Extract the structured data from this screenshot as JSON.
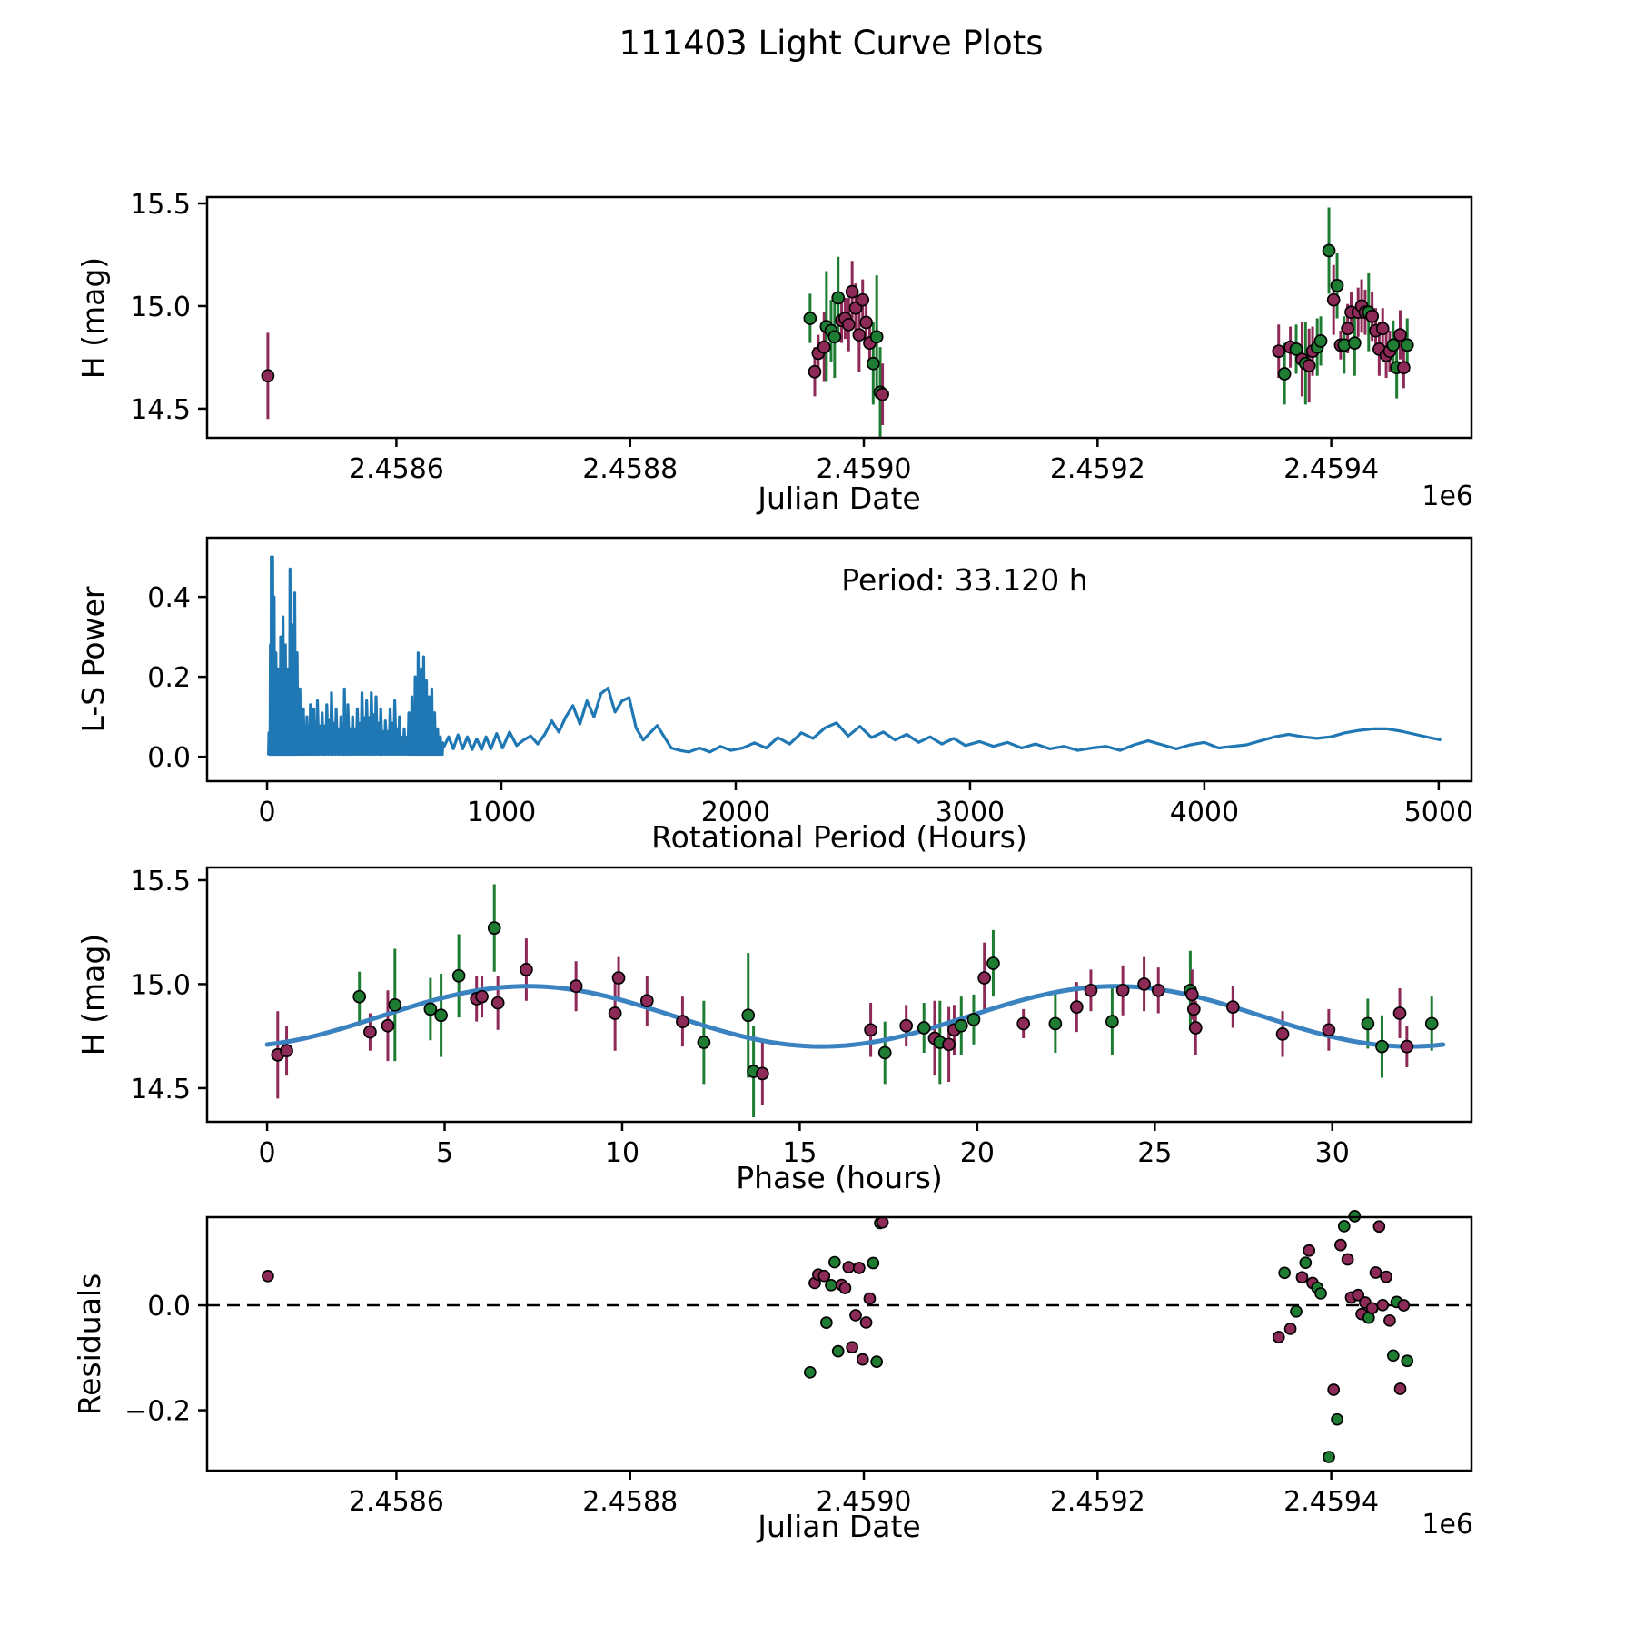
{
  "title": "111403 Light Curve Plots",
  "marker_colors": {
    "m": "#8e2a57",
    "g": "#1e7d32"
  },
  "axis_color": "#000000",
  "chart_data": [
    {
      "id": "lightcurve_vs_jd",
      "type": "scatter",
      "xlabel": "Julian Date",
      "ylabel": "H (mag)",
      "x_offset_label": "1e6",
      "xlim": [
        2.458438,
        2.45952
      ],
      "ylim": [
        14.358,
        15.531
      ],
      "xticks": [
        2.4586,
        2.4588,
        2.459,
        2.4592,
        2.4594
      ],
      "xtick_labels": [
        "2.4586",
        "2.4588",
        "2.4590",
        "2.4592",
        "2.4594"
      ],
      "yticks": [
        14.5,
        15.0,
        15.5
      ],
      "ytick_labels": [
        "14.5",
        "15.0",
        "15.5"
      ],
      "points_source": "observations: x = jd (Julian Date / 1e6), y = h, yerr = err, color = c"
    },
    {
      "id": "ls_periodogram",
      "type": "line",
      "xlabel": "Rotational Period (Hours)",
      "ylabel": "L-S Power",
      "annotation": "Period: 33.120 h",
      "line_color": "#1f77b4",
      "xlim": [
        -256,
        5140
      ],
      "ylim": [
        -0.061,
        0.548
      ],
      "xticks": [
        0,
        1000,
        2000,
        3000,
        4000,
        5000
      ],
      "xtick_labels": [
        "0",
        "1000",
        "2000",
        "3000",
        "4000",
        "5000"
      ],
      "yticks": [
        0.0,
        0.2,
        0.4
      ],
      "ytick_labels": [
        "0.0",
        "0.2",
        "0.4"
      ],
      "spike_envelope": [
        [
          8,
          0.06
        ],
        [
          14,
          0.28
        ],
        [
          18,
          0.5
        ],
        [
          24,
          0.5
        ],
        [
          30,
          0.4
        ],
        [
          38,
          0.26
        ],
        [
          48,
          0.22
        ],
        [
          58,
          0.3
        ],
        [
          68,
          0.35
        ],
        [
          78,
          0.28
        ],
        [
          88,
          0.22
        ],
        [
          98,
          0.47
        ],
        [
          108,
          0.33
        ],
        [
          118,
          0.41
        ],
        [
          128,
          0.26
        ],
        [
          140,
          0.17
        ],
        [
          155,
          0.12
        ],
        [
          170,
          0.1
        ],
        [
          185,
          0.13
        ],
        [
          200,
          0.12
        ],
        [
          215,
          0.14
        ],
        [
          235,
          0.11
        ],
        [
          255,
          0.13
        ],
        [
          275,
          0.16
        ],
        [
          295,
          0.12
        ],
        [
          315,
          0.1
        ],
        [
          330,
          0.17
        ],
        [
          345,
          0.13
        ],
        [
          365,
          0.1
        ],
        [
          385,
          0.12
        ],
        [
          405,
          0.16
        ],
        [
          425,
          0.14
        ],
        [
          445,
          0.16
        ],
        [
          465,
          0.15
        ],
        [
          485,
          0.12
        ],
        [
          505,
          0.09
        ],
        [
          525,
          0.12
        ],
        [
          545,
          0.14
        ],
        [
          565,
          0.1
        ],
        [
          585,
          0.07
        ],
        [
          605,
          0.11
        ],
        [
          618,
          0.15
        ],
        [
          632,
          0.2
        ],
        [
          645,
          0.26
        ],
        [
          658,
          0.22
        ],
        [
          668,
          0.25
        ],
        [
          680,
          0.19
        ],
        [
          692,
          0.15
        ],
        [
          703,
          0.17
        ],
        [
          715,
          0.11
        ],
        [
          728,
          0.07
        ],
        [
          740,
          0.05
        ],
        [
          750,
          0.035
        ]
      ],
      "smooth_points": [
        [
          755,
          0.025
        ],
        [
          775,
          0.05
        ],
        [
          795,
          0.02
        ],
        [
          815,
          0.055
        ],
        [
          835,
          0.02
        ],
        [
          855,
          0.05
        ],
        [
          875,
          0.018
        ],
        [
          895,
          0.045
        ],
        [
          915,
          0.018
        ],
        [
          935,
          0.05
        ],
        [
          955,
          0.02
        ],
        [
          980,
          0.058
        ],
        [
          1005,
          0.022
        ],
        [
          1035,
          0.062
        ],
        [
          1065,
          0.028
        ],
        [
          1095,
          0.042
        ],
        [
          1125,
          0.052
        ],
        [
          1155,
          0.032
        ],
        [
          1185,
          0.056
        ],
        [
          1215,
          0.09
        ],
        [
          1245,
          0.062
        ],
        [
          1275,
          0.1
        ],
        [
          1305,
          0.128
        ],
        [
          1335,
          0.082
        ],
        [
          1365,
          0.14
        ],
        [
          1395,
          0.1
        ],
        [
          1425,
          0.158
        ],
        [
          1455,
          0.172
        ],
        [
          1485,
          0.112
        ],
        [
          1515,
          0.14
        ],
        [
          1545,
          0.148
        ],
        [
          1575,
          0.072
        ],
        [
          1605,
          0.042
        ],
        [
          1635,
          0.06
        ],
        [
          1665,
          0.078
        ],
        [
          1695,
          0.05
        ],
        [
          1725,
          0.022
        ],
        [
          1760,
          0.016
        ],
        [
          1800,
          0.012
        ],
        [
          1845,
          0.022
        ],
        [
          1890,
          0.012
        ],
        [
          1935,
          0.026
        ],
        [
          1980,
          0.016
        ],
        [
          2030,
          0.022
        ],
        [
          2080,
          0.035
        ],
        [
          2130,
          0.022
        ],
        [
          2180,
          0.048
        ],
        [
          2230,
          0.032
        ],
        [
          2280,
          0.06
        ],
        [
          2330,
          0.046
        ],
        [
          2380,
          0.072
        ],
        [
          2430,
          0.085
        ],
        [
          2480,
          0.052
        ],
        [
          2530,
          0.076
        ],
        [
          2580,
          0.048
        ],
        [
          2630,
          0.062
        ],
        [
          2680,
          0.042
        ],
        [
          2730,
          0.056
        ],
        [
          2780,
          0.036
        ],
        [
          2830,
          0.05
        ],
        [
          2880,
          0.032
        ],
        [
          2930,
          0.046
        ],
        [
          2980,
          0.028
        ],
        [
          3040,
          0.038
        ],
        [
          3100,
          0.026
        ],
        [
          3160,
          0.036
        ],
        [
          3220,
          0.022
        ],
        [
          3280,
          0.032
        ],
        [
          3340,
          0.02
        ],
        [
          3400,
          0.026
        ],
        [
          3460,
          0.016
        ],
        [
          3520,
          0.022
        ],
        [
          3580,
          0.026
        ],
        [
          3640,
          0.016
        ],
        [
          3700,
          0.03
        ],
        [
          3760,
          0.04
        ],
        [
          3820,
          0.03
        ],
        [
          3880,
          0.02
        ],
        [
          3940,
          0.03
        ],
        [
          4000,
          0.036
        ],
        [
          4060,
          0.022
        ],
        [
          4120,
          0.026
        ],
        [
          4180,
          0.03
        ],
        [
          4240,
          0.04
        ],
        [
          4300,
          0.05
        ],
        [
          4360,
          0.056
        ],
        [
          4420,
          0.05
        ],
        [
          4480,
          0.046
        ],
        [
          4540,
          0.05
        ],
        [
          4600,
          0.06
        ],
        [
          4660,
          0.066
        ],
        [
          4720,
          0.07
        ],
        [
          4780,
          0.07
        ],
        [
          4840,
          0.064
        ],
        [
          4900,
          0.056
        ],
        [
          4960,
          0.048
        ],
        [
          5010,
          0.042
        ]
      ]
    },
    {
      "id": "phase_folded_lightcurve",
      "type": "scatter+line",
      "xlabel": "Phase (hours)",
      "ylabel": "H (mag)",
      "xlim": [
        -1.69,
        33.92
      ],
      "ylim": [
        14.338,
        15.561
      ],
      "xticks": [
        0,
        5,
        10,
        15,
        20,
        25,
        30
      ],
      "xtick_labels": [
        "0",
        "5",
        "10",
        "15",
        "20",
        "25",
        "30"
      ],
      "yticks": [
        14.5,
        15.0,
        15.5
      ],
      "ytick_labels": [
        "14.5",
        "15.0",
        "15.5"
      ],
      "model": {
        "mean": 14.845,
        "amplitude": 0.145,
        "sine_period_h": 16.56,
        "phase_zero_h": 3.2,
        "full_period_h": 33.12,
        "color": "#3b82c0"
      },
      "points_source": "observations: x = phase, y = h, yerr = err, color = c"
    },
    {
      "id": "residuals_vs_jd",
      "type": "scatter",
      "xlabel": "Julian Date",
      "ylabel": "Residuals",
      "x_offset_label": "1e6",
      "xlim": [
        2.458438,
        2.45952
      ],
      "ylim": [
        -0.315,
        0.168
      ],
      "xticks": [
        2.4586,
        2.4588,
        2.459,
        2.4592,
        2.4594
      ],
      "xtick_labels": [
        "2.4586",
        "2.4588",
        "2.4590",
        "2.4592",
        "2.4594"
      ],
      "yticks": [
        0.0,
        -0.2
      ],
      "ytick_labels": [
        "0.0",
        "−0.2"
      ],
      "zero_line": true,
      "points_source": "observations: x = jd, y = model(phase) - h"
    }
  ],
  "observations": [
    [
      2.45849,
      0.3,
      14.66,
      0.21,
      "m"
    ],
    [
      2.458958,
      0.55,
      14.68,
      0.12,
      "m"
    ],
    [
      2.458954,
      2.6,
      14.94,
      0.12,
      "g"
    ],
    [
      2.458961,
      2.9,
      14.77,
      0.09,
      "m"
    ],
    [
      2.458966,
      3.4,
      14.8,
      0.17,
      "m"
    ],
    [
      2.458968,
      3.6,
      14.9,
      0.27,
      "g"
    ],
    [
      2.458972,
      4.6,
      14.88,
      0.15,
      "g"
    ],
    [
      2.458975,
      4.9,
      14.85,
      0.2,
      "g"
    ],
    [
      2.458978,
      5.4,
      15.04,
      0.2,
      "g"
    ],
    [
      2.458981,
      5.9,
      14.93,
      0.11,
      "m"
    ],
    [
      2.458984,
      6.05,
      14.94,
      0.1,
      "m"
    ],
    [
      2.459398,
      6.4,
      15.27,
      0.21,
      "g"
    ],
    [
      2.458987,
      6.5,
      14.91,
      0.13,
      "m"
    ],
    [
      2.45899,
      7.3,
      15.07,
      0.15,
      "m"
    ],
    [
      2.458993,
      8.7,
      14.99,
      0.12,
      "m"
    ],
    [
      2.458996,
      9.8,
      14.86,
      0.18,
      "m"
    ],
    [
      2.458999,
      9.9,
      15.03,
      0.1,
      "m"
    ],
    [
      2.459002,
      10.7,
      14.92,
      0.12,
      "m"
    ],
    [
      2.459005,
      11.7,
      14.82,
      0.12,
      "m"
    ],
    [
      2.459008,
      12.3,
      14.72,
      0.2,
      "g"
    ],
    [
      2.459011,
      13.55,
      14.85,
      0.3,
      "g"
    ],
    [
      2.459014,
      13.7,
      14.58,
      0.22,
      "g"
    ],
    [
      2.459016,
      13.95,
      14.57,
      0.15,
      "m"
    ],
    [
      2.459355,
      17.0,
      14.78,
      0.13,
      "m"
    ],
    [
      2.45936,
      17.4,
      14.67,
      0.15,
      "g"
    ],
    [
      2.459365,
      18.0,
      14.8,
      0.1,
      "m"
    ],
    [
      2.45937,
      18.5,
      14.79,
      0.12,
      "g"
    ],
    [
      2.459375,
      18.8,
      14.74,
      0.18,
      "m"
    ],
    [
      2.459378,
      18.95,
      14.72,
      0.2,
      "g"
    ],
    [
      2.459381,
      19.2,
      14.71,
      0.18,
      "m"
    ],
    [
      2.459384,
      19.35,
      14.78,
      0.12,
      "m"
    ],
    [
      2.459388,
      19.55,
      14.8,
      0.14,
      "g"
    ],
    [
      2.459391,
      19.9,
      14.83,
      0.12,
      "g"
    ],
    [
      2.459402,
      20.2,
      15.03,
      0.17,
      "m"
    ],
    [
      2.459405,
      20.45,
      15.1,
      0.16,
      "g"
    ],
    [
      2.459408,
      21.3,
      14.81,
      0.07,
      "m"
    ],
    [
      2.459411,
      22.2,
      14.81,
      0.14,
      "g"
    ],
    [
      2.459414,
      22.8,
      14.89,
      0.12,
      "m"
    ],
    [
      2.459417,
      23.2,
      14.97,
      0.1,
      "m"
    ],
    [
      2.45942,
      23.8,
      14.82,
      0.16,
      "g"
    ],
    [
      2.459423,
      24.1,
      14.97,
      0.12,
      "m"
    ],
    [
      2.459426,
      24.7,
      15.0,
      0.13,
      "m"
    ],
    [
      2.459429,
      25.1,
      14.97,
      0.11,
      "m"
    ],
    [
      2.459432,
      26.0,
      14.97,
      0.19,
      "g"
    ],
    [
      2.459435,
      26.05,
      14.95,
      0.12,
      "m"
    ],
    [
      2.459438,
      26.1,
      14.88,
      0.11,
      "m"
    ],
    [
      2.459441,
      26.15,
      14.79,
      0.13,
      "m"
    ],
    [
      2.459444,
      27.2,
      14.89,
      0.1,
      "m"
    ],
    [
      2.459447,
      28.6,
      14.76,
      0.11,
      "m"
    ],
    [
      2.45945,
      29.9,
      14.78,
      0.1,
      "m"
    ],
    [
      2.459453,
      31.0,
      14.81,
      0.12,
      "g"
    ],
    [
      2.459456,
      31.4,
      14.7,
      0.15,
      "g"
    ],
    [
      2.459459,
      31.9,
      14.86,
      0.12,
      "m"
    ],
    [
      2.459462,
      32.1,
      14.7,
      0.1,
      "m"
    ],
    [
      2.459465,
      32.8,
      14.81,
      0.13,
      "g"
    ]
  ]
}
